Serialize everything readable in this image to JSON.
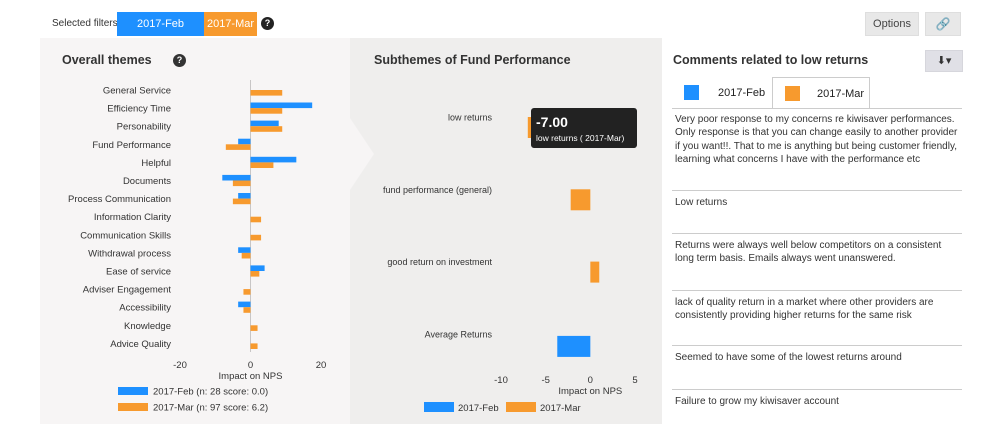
{
  "filters": {
    "label": "Selected filters:",
    "chips": [
      "2017-Feb",
      "2017-Mar"
    ],
    "help": "?",
    "options_label": "Options",
    "link_icon": "🔗"
  },
  "themes": {
    "title": "Overall themes",
    "help": "?"
  },
  "subthemes": {
    "title": "Subthemes of Fund Performance",
    "tooltip_value": "-7.00",
    "tooltip_label": "low returns ( 2017-Mar)"
  },
  "comments": {
    "title": "Comments related to low returns",
    "download_label": "⬇▾",
    "tabs": [
      "2017-Feb",
      "2017-Mar"
    ],
    "items": [
      "Very poor response to my concerns re kiwisaver performances. Only response is that you can change easily to another provider if you want!!. That to me is anything but being customer friendly, learning what concerns I have with the performance etc",
      "Low returns",
      "Returns were always well below competitors on a consistent long term basis. Emails always went unanswered.",
      "lack of quality return in a market where other providers are consistently providing higher returns for the same risk",
      "Seemed to have some of the lowest returns around",
      "Failure to grow my kiwisaver account"
    ]
  },
  "colors": {
    "feb": "#1e90ff",
    "mar": "#f79a2e"
  },
  "chart_data": [
    {
      "type": "bar",
      "orientation": "horizontal",
      "title": "Overall themes",
      "xlabel": "Impact on NPS",
      "xlim": [
        -20,
        20
      ],
      "xticks": [
        -20,
        0,
        20
      ],
      "xtick_labels": [
        "-20",
        "0",
        "20"
      ],
      "categories": [
        "General Service",
        "Efficiency Time",
        "Personability",
        "Fund Performance",
        "Helpful",
        "Documents",
        "Process Communication",
        "Information Clarity",
        "Communication Skills",
        "Withdrawal process",
        "Ease of service",
        "Adviser Engagement",
        "Accessibility",
        "Knowledge",
        "Advice Quality"
      ],
      "series": [
        {
          "name": "2017-Feb (n: 28 score: 0.0)",
          "values": [
            0,
            17.5,
            8,
            -3.5,
            13,
            -8,
            -3.5,
            0,
            0,
            -3.5,
            4,
            0,
            -3.5,
            0,
            0
          ]
        },
        {
          "name": "2017-Mar (n: 97 score: 6.2)",
          "values": [
            9,
            9,
            9,
            -7,
            6.5,
            -5,
            -5,
            3,
            3,
            -2.5,
            2.5,
            -2,
            -2,
            2,
            2
          ]
        }
      ]
    },
    {
      "type": "bar",
      "orientation": "horizontal",
      "title": "Subthemes of Fund Performance",
      "xlabel": "Impact on NPS",
      "xlim": [
        -10,
        5
      ],
      "xticks": [
        -10,
        -5,
        0,
        5
      ],
      "xtick_labels": [
        "-10",
        "-5",
        "0",
        "5"
      ],
      "categories": [
        "low returns",
        "fund performance (general)",
        "good return on investment",
        "Average Returns"
      ],
      "series": [
        {
          "name": "2017-Feb",
          "values": [
            0,
            0,
            0,
            -3.7
          ]
        },
        {
          "name": "2017-Mar",
          "values": [
            -7.0,
            -2.2,
            1.0,
            0
          ]
        }
      ]
    }
  ]
}
